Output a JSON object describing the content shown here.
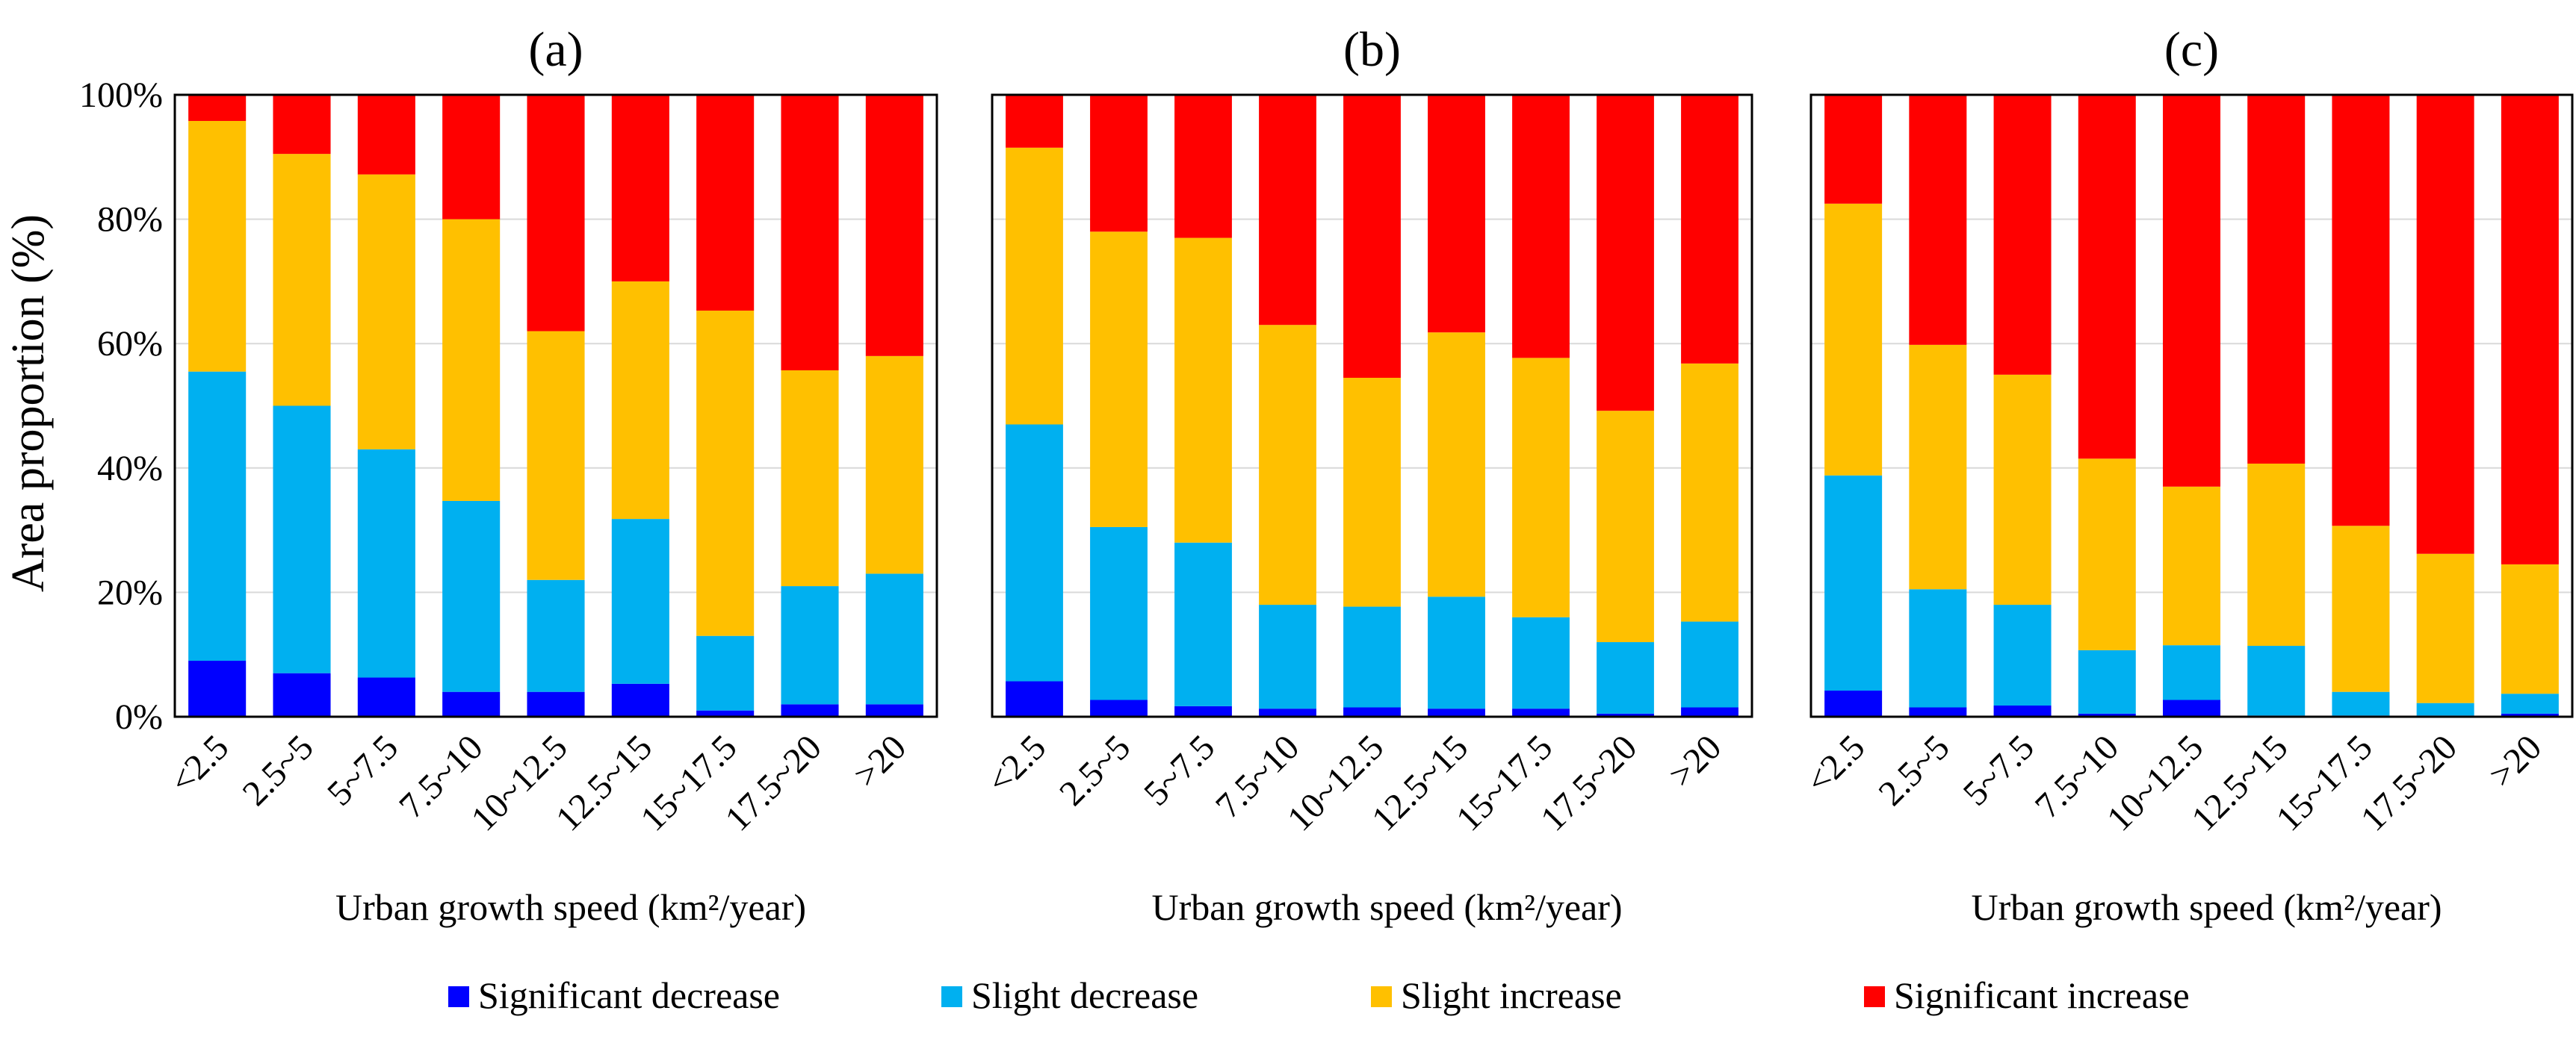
{
  "figure": {
    "ylabel": "Area proportion (%)",
    "yticks": [
      "0%",
      "20%",
      "40%",
      "60%",
      "80%",
      "100%"
    ]
  },
  "legend": [
    {
      "label": "Significant decrease",
      "color": "#0000FF"
    },
    {
      "label": "Slight decrease",
      "color": "#00B0F0"
    },
    {
      "label": "Slight increase",
      "color": "#FFC000"
    },
    {
      "label": "Significant increase",
      "color": "#FF0000"
    }
  ],
  "chart_data": [
    {
      "type": "bar",
      "stacked": true,
      "title": "(a)",
      "xlabel": "Urban growth speed (km²/year)",
      "ylabel": "Area proportion (%)",
      "ylim": [
        0,
        100
      ],
      "categories": [
        "<2.5",
        "2.5~5",
        "5~7.5",
        "7.5~10",
        "10~12.5",
        "12.5~15",
        "15~17.5",
        "17.5~20",
        ">20"
      ],
      "series": [
        {
          "name": "Significant decrease",
          "values": [
            9,
            7,
            6.3,
            4,
            4,
            5.3,
            1,
            2,
            2
          ]
        },
        {
          "name": "Slight decrease",
          "values": [
            46.5,
            43,
            36.7,
            30.7,
            18,
            26.5,
            12,
            19,
            21
          ]
        },
        {
          "name": "Slight increase",
          "values": [
            40.3,
            40.5,
            44.2,
            45.3,
            40,
            38.2,
            52.3,
            34.7,
            35
          ]
        },
        {
          "name": "Significant increase",
          "values": [
            4.2,
            9.5,
            12.8,
            20,
            38,
            30,
            34.7,
            44.3,
            42
          ]
        }
      ]
    },
    {
      "type": "bar",
      "stacked": true,
      "title": "(b)",
      "xlabel": "Urban growth speed (km²/year)",
      "ylabel": "Area proportion (%)",
      "ylim": [
        0,
        100
      ],
      "categories": [
        "<2.5",
        "2.5~5",
        "5~7.5",
        "7.5~10",
        "10~12.5",
        "12.5~15",
        "15~17.5",
        "17.5~20",
        ">20"
      ],
      "series": [
        {
          "name": "Significant decrease",
          "values": [
            5.7,
            2.7,
            1.7,
            1.3,
            1.5,
            1.3,
            1.3,
            0.5,
            1.5
          ]
        },
        {
          "name": "Slight decrease",
          "values": [
            41.3,
            27.8,
            26.3,
            16.7,
            16.2,
            18,
            14.7,
            11.5,
            13.8
          ]
        },
        {
          "name": "Slight increase",
          "values": [
            44.5,
            47.5,
            49,
            45,
            36.8,
            42.5,
            41.7,
            37.2,
            41.5
          ]
        },
        {
          "name": "Significant increase",
          "values": [
            8.5,
            22,
            23,
            37,
            45.5,
            38.2,
            42.3,
            50.8,
            43.2
          ]
        }
      ]
    },
    {
      "type": "bar",
      "stacked": true,
      "title": "(c)",
      "xlabel": "Urban growth speed (km²/year)",
      "ylabel": "Area proportion (%)",
      "ylim": [
        0,
        100
      ],
      "categories": [
        "<2.5",
        "2.5~5",
        "5~7.5",
        "7.5~10",
        "10~12.5",
        "12.5~15",
        "15~17.5",
        "17.5~20",
        ">20"
      ],
      "series": [
        {
          "name": "Significant decrease",
          "values": [
            4.2,
            1.5,
            1.8,
            0.5,
            2.7,
            0.2,
            0.2,
            0.2,
            0.5
          ]
        },
        {
          "name": "Slight decrease",
          "values": [
            34.6,
            19,
            16.2,
            10.2,
            8.8,
            11.2,
            3.8,
            2,
            3.2
          ]
        },
        {
          "name": "Slight increase",
          "values": [
            43.7,
            39.3,
            37,
            30.8,
            25.5,
            29.3,
            26.7,
            24,
            20.8
          ]
        },
        {
          "name": "Significant increase",
          "values": [
            17.5,
            40.2,
            45,
            58.5,
            63,
            59.3,
            69.3,
            73.8,
            75.5
          ]
        }
      ]
    }
  ]
}
